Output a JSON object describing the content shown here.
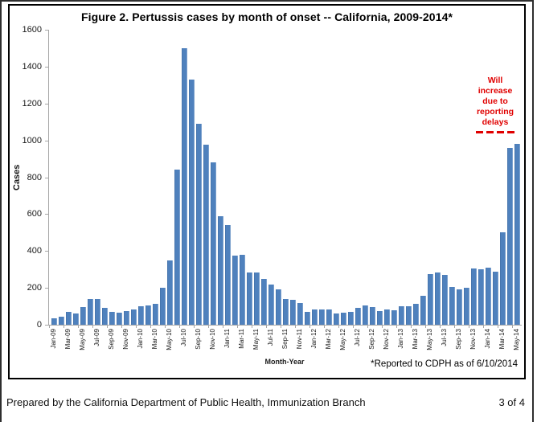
{
  "figure": {
    "footnote": "*Reported to CDPH as of 6/10/2014"
  },
  "chart_data": {
    "type": "bar",
    "title": "Figure 2. Pertussis cases by month of onset -- California, 2009-2014*",
    "xlabel": "Month-Year",
    "ylabel": "Cases",
    "ylim": [
      0,
      1600
    ],
    "ytick_step": 200,
    "x_tick_every": 2,
    "grid": false,
    "legend": false,
    "bar_color": "#4F81BD",
    "axis_color": "#A6A6A6",
    "categories": [
      "Jan-09",
      "Feb-09",
      "Mar-09",
      "Apr-09",
      "May-09",
      "Jun-09",
      "Jul-09",
      "Aug-09",
      "Sep-09",
      "Oct-09",
      "Nov-09",
      "Dec-09",
      "Jan-10",
      "Feb-10",
      "Mar-10",
      "Apr-10",
      "May-10",
      "Jun-10",
      "Jul-10",
      "Aug-10",
      "Sep-10",
      "Oct-10",
      "Nov-10",
      "Dec-10",
      "Jan-11",
      "Feb-11",
      "Mar-11",
      "Apr-11",
      "May-11",
      "Jun-11",
      "Jul-11",
      "Aug-11",
      "Sep-11",
      "Oct-11",
      "Nov-11",
      "Dec-11",
      "Jan-12",
      "Feb-12",
      "Mar-12",
      "Apr-12",
      "May-12",
      "Jun-12",
      "Jul-12",
      "Aug-12",
      "Sep-12",
      "Oct-12",
      "Nov-12",
      "Dec-12",
      "Jan-13",
      "Feb-13",
      "Mar-13",
      "Apr-13",
      "May-13",
      "Jun-13",
      "Jul-13",
      "Aug-13",
      "Sep-13",
      "Oct-13",
      "Nov-13",
      "Dec-13",
      "Jan-14",
      "Feb-14",
      "Mar-14",
      "Apr-14",
      "May-14"
    ],
    "values": [
      35,
      45,
      70,
      60,
      95,
      140,
      140,
      90,
      70,
      65,
      75,
      85,
      100,
      105,
      115,
      200,
      350,
      840,
      1500,
      1330,
      1090,
      975,
      880,
      590,
      540,
      375,
      380,
      285,
      285,
      250,
      220,
      190,
      140,
      135,
      120,
      70,
      85,
      85,
      85,
      60,
      65,
      70,
      90,
      105,
      95,
      75,
      85,
      80,
      100,
      100,
      115,
      155,
      275,
      285,
      270,
      205,
      190,
      200,
      305,
      300,
      310,
      290,
      500,
      960,
      980
    ],
    "annotation": {
      "lines": [
        "Will",
        "increase",
        "due to",
        "reporting",
        "delays"
      ],
      "color": "#E00000",
      "marker": "dashed-line"
    }
  },
  "page": {
    "footer_left": "Prepared by the California Department of Public Health, Immunization Branch",
    "footer_right": "3 of 4"
  }
}
